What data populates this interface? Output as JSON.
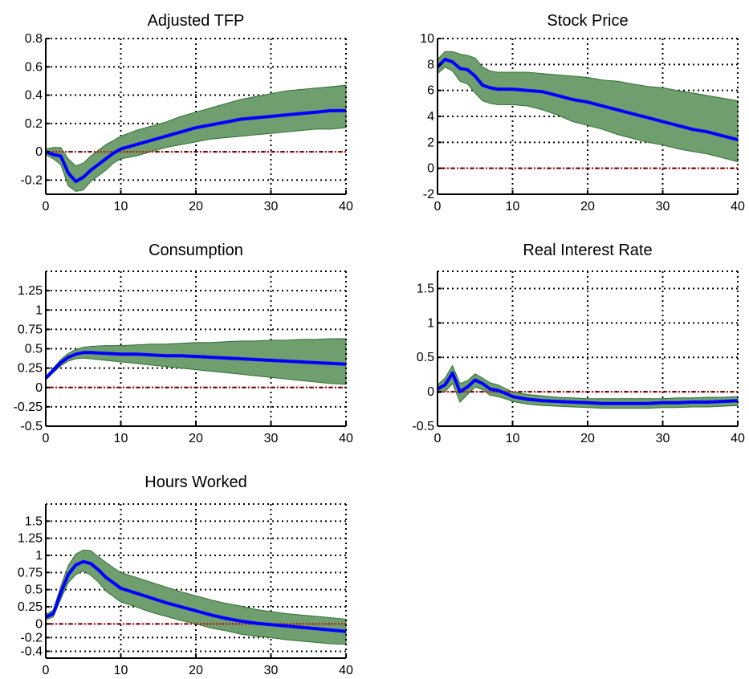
{
  "chart_data": [
    {
      "type": "line",
      "title": "Adjusted TFP",
      "xlim": [
        0,
        40
      ],
      "ylim": [
        -0.3,
        0.8
      ],
      "xticks": [
        0,
        10,
        20,
        30,
        40
      ],
      "yticks": [
        -0.2,
        0,
        0.2,
        0.4,
        0.6,
        0.8
      ],
      "ytick_labels": [
        "-0.2",
        "0",
        "0.2",
        "0.4",
        "0.6",
        "0.8"
      ],
      "grid": true,
      "zero_line": 0,
      "colors": {
        "line": "#0000ff",
        "band": "#6f9f6f",
        "band_edge": "#2f6f2f",
        "zero": "#cc0000"
      },
      "series": [
        {
          "role": "median",
          "x": [
            0,
            1,
            2,
            3,
            4,
            5,
            6,
            7,
            8,
            9,
            10,
            12,
            14,
            16,
            18,
            20,
            22,
            24,
            26,
            28,
            30,
            32,
            34,
            36,
            38,
            40
          ],
          "values": [
            0,
            -0.02,
            -0.03,
            -0.15,
            -0.21,
            -0.18,
            -0.13,
            -0.09,
            -0.05,
            -0.01,
            0.02,
            0.05,
            0.08,
            0.11,
            0.14,
            0.17,
            0.19,
            0.21,
            0.23,
            0.24,
            0.25,
            0.26,
            0.27,
            0.28,
            0.29,
            0.29
          ]
        },
        {
          "role": "band_upper",
          "x": [
            0,
            1,
            2,
            3,
            4,
            5,
            6,
            7,
            8,
            9,
            10,
            12,
            14,
            16,
            18,
            20,
            22,
            24,
            26,
            28,
            30,
            32,
            34,
            36,
            38,
            40
          ],
          "values": [
            0.02,
            0.03,
            0.03,
            -0.05,
            -0.1,
            -0.08,
            -0.03,
            0.01,
            0.05,
            0.08,
            0.11,
            0.15,
            0.18,
            0.21,
            0.25,
            0.28,
            0.31,
            0.34,
            0.37,
            0.39,
            0.41,
            0.43,
            0.44,
            0.45,
            0.46,
            0.47
          ]
        },
        {
          "role": "band_lower",
          "x": [
            0,
            1,
            2,
            3,
            4,
            5,
            6,
            7,
            8,
            9,
            10,
            12,
            14,
            16,
            18,
            20,
            22,
            24,
            26,
            28,
            30,
            32,
            34,
            36,
            38,
            40
          ],
          "values": [
            -0.02,
            -0.05,
            -0.09,
            -0.24,
            -0.28,
            -0.27,
            -0.21,
            -0.17,
            -0.13,
            -0.08,
            -0.05,
            -0.03,
            0,
            0.03,
            0.05,
            0.07,
            0.09,
            0.1,
            0.11,
            0.12,
            0.13,
            0.14,
            0.15,
            0.16,
            0.16,
            0.17
          ]
        }
      ]
    },
    {
      "type": "line",
      "title": "Stock Price",
      "xlim": [
        0,
        40
      ],
      "ylim": [
        -2,
        10
      ],
      "xticks": [
        0,
        10,
        20,
        30,
        40
      ],
      "yticks": [
        -2,
        0,
        2,
        4,
        6,
        8,
        10
      ],
      "ytick_labels": [
        "-2",
        "0",
        "2",
        "4",
        "6",
        "8",
        "10"
      ],
      "grid": true,
      "zero_line": 0,
      "colors": {
        "line": "#0000ff",
        "band": "#6f9f6f",
        "band_edge": "#2f6f2f",
        "zero": "#cc0000"
      },
      "series": [
        {
          "role": "median",
          "x": [
            0,
            1,
            2,
            3,
            4,
            5,
            6,
            7,
            8,
            10,
            12,
            14,
            16,
            18,
            20,
            22,
            24,
            26,
            28,
            30,
            32,
            34,
            36,
            38,
            40
          ],
          "values": [
            7.8,
            8.4,
            8.2,
            7.7,
            7.6,
            7.1,
            6.4,
            6.2,
            6.1,
            6.1,
            6.0,
            5.9,
            5.6,
            5.3,
            5.1,
            4.8,
            4.5,
            4.2,
            3.9,
            3.6,
            3.3,
            3.0,
            2.8,
            2.5,
            2.2
          ]
        },
        {
          "role": "band_upper",
          "x": [
            0,
            1,
            2,
            3,
            4,
            5,
            6,
            7,
            8,
            10,
            12,
            14,
            16,
            18,
            20,
            22,
            24,
            26,
            28,
            30,
            32,
            34,
            36,
            38,
            40
          ],
          "values": [
            8.4,
            9.0,
            9.0,
            8.8,
            8.7,
            8.5,
            7.8,
            7.5,
            7.4,
            7.4,
            7.4,
            7.3,
            7.2,
            7.1,
            7.0,
            6.8,
            6.7,
            6.5,
            6.3,
            6.2,
            6.0,
            5.8,
            5.6,
            5.4,
            5.2
          ]
        },
        {
          "role": "band_lower",
          "x": [
            0,
            1,
            2,
            3,
            4,
            5,
            6,
            7,
            8,
            10,
            12,
            14,
            16,
            18,
            20,
            22,
            24,
            26,
            28,
            30,
            32,
            34,
            36,
            38,
            40
          ],
          "values": [
            7.3,
            7.8,
            7.5,
            6.7,
            6.5,
            5.8,
            5.2,
            5.0,
            4.9,
            4.9,
            4.8,
            4.5,
            4.1,
            3.6,
            3.3,
            3.0,
            2.6,
            2.3,
            2.0,
            1.8,
            1.5,
            1.3,
            1.1,
            0.8,
            0.5
          ]
        }
      ]
    },
    {
      "type": "line",
      "title": "Consumption",
      "xlim": [
        0,
        40
      ],
      "ylim": [
        -0.5,
        1.5
      ],
      "xticks": [
        0,
        10,
        20,
        30,
        40
      ],
      "yticks": [
        -0.5,
        -0.25,
        0,
        0.25,
        0.5,
        0.75,
        1,
        1.25
      ],
      "ytick_labels": [
        "-0.5",
        "-0.25",
        "0",
        "0.25",
        "0.5",
        "0.75",
        "1",
        "1.25"
      ],
      "grid": true,
      "zero_line": 0,
      "colors": {
        "line": "#0000ff",
        "band": "#6f9f6f",
        "band_edge": "#2f6f2f",
        "zero": "#cc0000"
      },
      "series": [
        {
          "role": "median",
          "x": [
            0,
            1,
            2,
            3,
            4,
            5,
            6,
            8,
            10,
            12,
            14,
            16,
            18,
            20,
            22,
            24,
            26,
            28,
            30,
            32,
            34,
            36,
            38,
            40
          ],
          "values": [
            0.12,
            0.22,
            0.32,
            0.39,
            0.43,
            0.45,
            0.45,
            0.44,
            0.43,
            0.43,
            0.42,
            0.41,
            0.41,
            0.4,
            0.39,
            0.38,
            0.37,
            0.36,
            0.35,
            0.34,
            0.33,
            0.32,
            0.31,
            0.3
          ]
        },
        {
          "role": "band_upper",
          "x": [
            0,
            1,
            2,
            3,
            4,
            5,
            6,
            8,
            10,
            12,
            14,
            16,
            18,
            20,
            22,
            24,
            26,
            28,
            30,
            32,
            34,
            36,
            38,
            40
          ],
          "values": [
            0.14,
            0.25,
            0.36,
            0.44,
            0.49,
            0.52,
            0.53,
            0.54,
            0.54,
            0.55,
            0.56,
            0.56,
            0.57,
            0.58,
            0.58,
            0.59,
            0.6,
            0.6,
            0.61,
            0.61,
            0.62,
            0.62,
            0.63,
            0.63
          ]
        },
        {
          "role": "band_lower",
          "x": [
            0,
            1,
            2,
            3,
            4,
            5,
            6,
            8,
            10,
            12,
            14,
            16,
            18,
            20,
            22,
            24,
            26,
            28,
            30,
            32,
            34,
            36,
            38,
            40
          ],
          "values": [
            0.1,
            0.19,
            0.28,
            0.34,
            0.37,
            0.38,
            0.37,
            0.35,
            0.33,
            0.31,
            0.29,
            0.27,
            0.25,
            0.23,
            0.21,
            0.19,
            0.17,
            0.15,
            0.13,
            0.11,
            0.09,
            0.07,
            0.05,
            0.04
          ]
        }
      ]
    },
    {
      "type": "line",
      "title": "Real Interest Rate",
      "xlim": [
        0,
        40
      ],
      "ylim": [
        -0.5,
        1.75
      ],
      "xticks": [
        0,
        10,
        20,
        30,
        40
      ],
      "yticks": [
        -0.5,
        0,
        0.5,
        1,
        1.5
      ],
      "ytick_labels": [
        "-0.5",
        "0",
        "0.5",
        "1",
        "1.5"
      ],
      "grid": true,
      "zero_line": 0,
      "colors": {
        "line": "#0000ff",
        "band": "#6f9f6f",
        "band_edge": "#2f6f2f",
        "zero": "#cc0000"
      },
      "series": [
        {
          "role": "median",
          "x": [
            0,
            1,
            2,
            3,
            4,
            5,
            6,
            7,
            8,
            9,
            10,
            12,
            14,
            16,
            18,
            20,
            22,
            24,
            26,
            28,
            30,
            32,
            34,
            36,
            38,
            40
          ],
          "values": [
            0.04,
            0.1,
            0.27,
            0.0,
            0.07,
            0.17,
            0.12,
            0.04,
            0.02,
            -0.02,
            -0.07,
            -0.11,
            -0.13,
            -0.14,
            -0.15,
            -0.16,
            -0.17,
            -0.17,
            -0.17,
            -0.17,
            -0.16,
            -0.16,
            -0.15,
            -0.15,
            -0.14,
            -0.13
          ]
        },
        {
          "role": "band_upper",
          "x": [
            0,
            1,
            2,
            3,
            4,
            5,
            6,
            7,
            8,
            9,
            10,
            12,
            14,
            16,
            18,
            20,
            22,
            24,
            26,
            28,
            30,
            32,
            34,
            36,
            38,
            40
          ],
          "values": [
            0.1,
            0.2,
            0.38,
            0.12,
            0.16,
            0.26,
            0.2,
            0.13,
            0.1,
            0.05,
            0.0,
            -0.04,
            -0.06,
            -0.08,
            -0.09,
            -0.1,
            -0.1,
            -0.1,
            -0.1,
            -0.1,
            -0.1,
            -0.09,
            -0.09,
            -0.08,
            -0.08,
            -0.07
          ]
        },
        {
          "role": "band_lower",
          "x": [
            0,
            1,
            2,
            3,
            4,
            5,
            6,
            7,
            8,
            9,
            10,
            12,
            14,
            16,
            18,
            20,
            22,
            24,
            26,
            28,
            30,
            32,
            34,
            36,
            38,
            40
          ],
          "values": [
            -0.02,
            0.0,
            0.12,
            -0.15,
            -0.04,
            0.07,
            0.03,
            -0.05,
            -0.07,
            -0.1,
            -0.14,
            -0.18,
            -0.2,
            -0.21,
            -0.22,
            -0.23,
            -0.24,
            -0.24,
            -0.24,
            -0.24,
            -0.23,
            -0.23,
            -0.22,
            -0.22,
            -0.21,
            -0.2
          ]
        }
      ]
    },
    {
      "type": "line",
      "title": "Hours Worked",
      "xlim": [
        0,
        40
      ],
      "ylim": [
        -0.5,
        1.75
      ],
      "xticks": [
        0,
        10,
        20,
        30,
        40
      ],
      "yticks": [
        -0.4,
        -0.2,
        0,
        0.25,
        0.5,
        0.75,
        1,
        1.25,
        1.5
      ],
      "ytick_labels": [
        "-0.4",
        "-0.2",
        "0",
        "0.25",
        "0.5",
        "0.75",
        "1",
        "1.25",
        "1.5"
      ],
      "grid": true,
      "zero_line": 0,
      "colors": {
        "line": "#0000ff",
        "band": "#6f9f6f",
        "band_edge": "#2f6f2f",
        "zero": "#cc0000"
      },
      "series": [
        {
          "role": "median",
          "x": [
            0,
            1,
            2,
            3,
            4,
            5,
            6,
            7,
            8,
            9,
            10,
            12,
            14,
            16,
            18,
            20,
            22,
            24,
            26,
            28,
            30,
            32,
            34,
            36,
            38,
            40
          ],
          "values": [
            0.1,
            0.15,
            0.45,
            0.72,
            0.86,
            0.91,
            0.88,
            0.79,
            0.68,
            0.6,
            0.52,
            0.45,
            0.38,
            0.31,
            0.25,
            0.19,
            0.13,
            0.08,
            0.04,
            0.01,
            -0.01,
            -0.03,
            -0.05,
            -0.07,
            -0.09,
            -0.11
          ]
        },
        {
          "role": "band_upper",
          "x": [
            0,
            1,
            2,
            3,
            4,
            5,
            6,
            7,
            8,
            9,
            10,
            12,
            14,
            16,
            18,
            20,
            22,
            24,
            26,
            28,
            30,
            32,
            34,
            36,
            38,
            40
          ],
          "values": [
            0.14,
            0.2,
            0.55,
            0.85,
            1.02,
            1.08,
            1.07,
            0.98,
            0.9,
            0.82,
            0.75,
            0.68,
            0.61,
            0.54,
            0.47,
            0.41,
            0.35,
            0.3,
            0.26,
            0.21,
            0.18,
            0.15,
            0.13,
            0.11,
            0.09,
            0.07
          ]
        },
        {
          "role": "band_lower",
          "x": [
            0,
            1,
            2,
            3,
            4,
            5,
            6,
            7,
            8,
            9,
            10,
            12,
            14,
            16,
            18,
            20,
            22,
            24,
            26,
            28,
            30,
            32,
            34,
            36,
            38,
            40
          ],
          "values": [
            0.06,
            0.1,
            0.36,
            0.6,
            0.72,
            0.77,
            0.71,
            0.61,
            0.48,
            0.4,
            0.32,
            0.25,
            0.17,
            0.11,
            0.05,
            0.0,
            -0.06,
            -0.1,
            -0.15,
            -0.18,
            -0.2,
            -0.23,
            -0.25,
            -0.27,
            -0.29,
            -0.3
          ]
        }
      ]
    }
  ]
}
